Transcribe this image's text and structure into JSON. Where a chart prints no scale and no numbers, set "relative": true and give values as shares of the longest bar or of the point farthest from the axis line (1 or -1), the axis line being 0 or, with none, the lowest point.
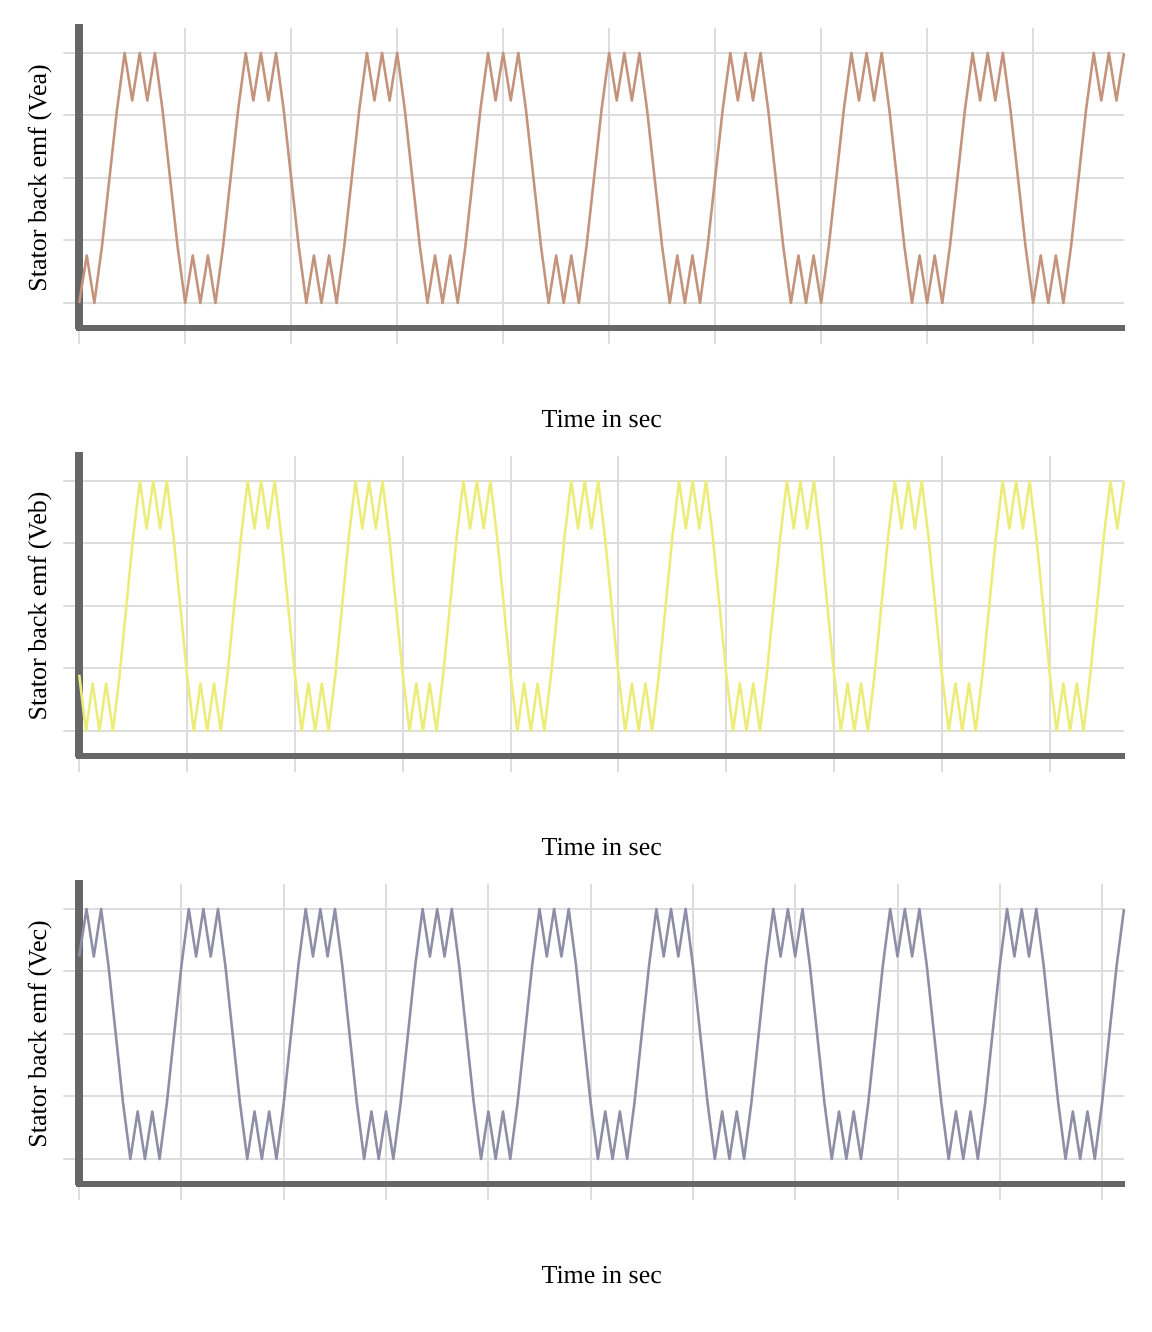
{
  "chart_data": [
    {
      "type": "line",
      "relative": true,
      "ylabel": "Stator back emf (Vea)",
      "xlabel": "Time in sec",
      "grid": true,
      "legend": false,
      "marker": "none",
      "line_style": "solid",
      "color": "#c4937c",
      "categories": [
        null,
        null,
        null,
        null,
        null,
        null,
        null,
        null,
        null,
        null,
        null,
        null,
        null,
        null,
        null,
        null,
        null,
        null,
        null,
        null,
        null,
        null,
        null,
        null,
        null,
        null,
        null,
        null,
        null,
        null,
        null,
        null,
        null,
        null,
        null,
        null,
        null,
        null,
        null,
        null,
        null,
        null,
        null,
        null,
        null,
        null,
        null,
        null,
        null,
        null,
        null,
        null,
        null,
        null,
        null,
        null,
        null,
        null,
        null,
        null,
        null,
        null,
        null,
        null,
        null,
        null,
        null,
        null,
        null,
        null,
        null,
        null,
        null,
        null,
        null,
        null,
        null,
        null,
        null,
        null,
        null,
        null,
        null,
        null,
        null,
        null,
        null,
        null,
        null,
        null,
        null,
        null,
        null,
        null,
        null,
        null,
        null,
        null,
        null,
        null,
        null,
        null,
        null,
        null,
        null,
        null,
        null,
        null,
        null,
        null,
        null,
        null,
        null,
        null,
        null,
        null,
        null,
        null,
        null,
        null,
        null,
        null,
        null,
        null,
        null,
        null,
        null,
        null,
        null,
        null,
        null,
        null,
        null,
        null,
        null,
        null,
        null,
        null,
        null
      ],
      "values": [
        -1,
        -0.62,
        -1,
        -0.55,
        0,
        0.55,
        1,
        0.62,
        1,
        0.62,
        1,
        0.55,
        0,
        -0.55,
        -1,
        -0.62,
        -1,
        -0.62,
        -1,
        -0.55,
        0,
        0.55,
        1,
        0.62,
        1,
        0.62,
        1,
        0.55,
        0,
        -0.55,
        -1,
        -0.62,
        -1,
        -0.62,
        -1,
        -0.55,
        0,
        0.55,
        1,
        0.62,
        1,
        0.62,
        1,
        0.55,
        0,
        -0.55,
        -1,
        -0.62,
        -1,
        -0.62,
        -1,
        -0.55,
        0,
        0.55,
        1,
        0.62,
        1,
        0.62,
        1,
        0.55,
        0,
        -0.55,
        -1,
        -0.62,
        -1,
        -0.62,
        -1,
        -0.55,
        0,
        0.55,
        1,
        0.62,
        1,
        0.62,
        1,
        0.55,
        0,
        -0.55,
        -1,
        -0.62,
        -1,
        -0.62,
        -1,
        -0.55,
        0,
        0.55,
        1,
        0.62,
        1,
        0.62,
        1,
        0.55,
        0,
        -0.55,
        -1,
        -0.62,
        -1,
        -0.62,
        -1,
        -0.55,
        0,
        0.55,
        1,
        0.62,
        1,
        0.62,
        1,
        0.55,
        0,
        -0.55,
        -1,
        -0.62,
        -1,
        -0.62,
        -1,
        -0.55,
        0,
        0.55,
        1,
        0.62,
        1,
        0.62,
        1,
        0.55,
        0,
        -0.55,
        -1,
        -0.62,
        -1,
        -0.62,
        -1,
        -0.55,
        0,
        0.55,
        1,
        0.62,
        1,
        0.62,
        1
      ]
    },
    {
      "type": "line",
      "relative": true,
      "ylabel": "Stator back emf (Veb)",
      "xlabel": "Time in sec",
      "grid": true,
      "legend": false,
      "marker": "none",
      "line_style": "solid",
      "color": "#ecec7a",
      "categories": [
        null,
        null,
        null,
        null,
        null,
        null,
        null,
        null,
        null,
        null,
        null,
        null,
        null,
        null,
        null,
        null,
        null,
        null,
        null,
        null,
        null,
        null,
        null,
        null,
        null,
        null,
        null,
        null,
        null,
        null,
        null,
        null,
        null,
        null,
        null,
        null,
        null,
        null,
        null,
        null,
        null,
        null,
        null,
        null,
        null,
        null,
        null,
        null,
        null,
        null,
        null,
        null,
        null,
        null,
        null,
        null,
        null,
        null,
        null,
        null,
        null,
        null,
        null,
        null,
        null,
        null,
        null,
        null,
        null,
        null,
        null,
        null,
        null,
        null,
        null,
        null,
        null,
        null,
        null,
        null,
        null,
        null,
        null,
        null,
        null,
        null,
        null,
        null,
        null,
        null,
        null,
        null,
        null,
        null,
        null,
        null,
        null,
        null,
        null,
        null,
        null,
        null,
        null,
        null,
        null,
        null,
        null,
        null,
        null,
        null,
        null,
        null,
        null,
        null,
        null,
        null,
        null,
        null,
        null,
        null,
        null,
        null,
        null,
        null,
        null,
        null,
        null,
        null,
        null,
        null,
        null,
        null,
        null,
        null,
        null,
        null,
        null,
        null,
        null,
        null,
        null,
        null,
        null,
        null,
        null,
        null,
        null,
        null,
        null,
        null,
        null,
        null,
        null,
        null,
        null,
        null
      ],
      "values": [
        -0.55,
        -1,
        -0.62,
        -1,
        -0.62,
        -1,
        -0.55,
        0,
        0.55,
        1,
        0.62,
        1,
        0.62,
        1,
        0.55,
        0,
        -0.55,
        -1,
        -0.62,
        -1,
        -0.62,
        -1,
        -0.55,
        0,
        0.55,
        1,
        0.62,
        1,
        0.62,
        1,
        0.55,
        0,
        -0.55,
        -1,
        -0.62,
        -1,
        -0.62,
        -1,
        -0.55,
        0,
        0.55,
        1,
        0.62,
        1,
        0.62,
        1,
        0.55,
        0,
        -0.55,
        -1,
        -0.62,
        -1,
        -0.62,
        -1,
        -0.55,
        0,
        0.55,
        1,
        0.62,
        1,
        0.62,
        1,
        0.55,
        0,
        -0.55,
        -1,
        -0.62,
        -1,
        -0.62,
        -1,
        -0.55,
        0,
        0.55,
        1,
        0.62,
        1,
        0.62,
        1,
        0.55,
        0,
        -0.55,
        -1,
        -0.62,
        -1,
        -0.62,
        -1,
        -0.55,
        0,
        0.55,
        1,
        0.62,
        1,
        0.62,
        1,
        0.55,
        0,
        -0.55,
        -1,
        -0.62,
        -1,
        -0.62,
        -1,
        -0.55,
        0,
        0.55,
        1,
        0.62,
        1,
        0.62,
        1,
        0.55,
        0,
        -0.55,
        -1,
        -0.62,
        -1,
        -0.62,
        -1,
        -0.55,
        0,
        0.55,
        1,
        0.62,
        1,
        0.62,
        1,
        0.55,
        0,
        -0.55,
        -1,
        -0.62,
        -1,
        -0.62,
        -1,
        -0.55,
        0,
        0.55,
        1,
        0.62,
        1,
        0.62,
        1,
        0.55,
        0,
        -0.55,
        -1,
        -0.62,
        -1,
        -0.62,
        -1,
        -0.55,
        0,
        0.55,
        1,
        0.62,
        1
      ]
    },
    {
      "type": "line",
      "relative": true,
      "ylabel": "Stator back emf (Vec)",
      "xlabel": "Time in sec",
      "grid": true,
      "legend": false,
      "marker": "none",
      "line_style": "solid",
      "color": "#8e8ea6",
      "categories": [
        null,
        null,
        null,
        null,
        null,
        null,
        null,
        null,
        null,
        null,
        null,
        null,
        null,
        null,
        null,
        null,
        null,
        null,
        null,
        null,
        null,
        null,
        null,
        null,
        null,
        null,
        null,
        null,
        null,
        null,
        null,
        null,
        null,
        null,
        null,
        null,
        null,
        null,
        null,
        null,
        null,
        null,
        null,
        null,
        null,
        null,
        null,
        null,
        null,
        null,
        null,
        null,
        null,
        null,
        null,
        null,
        null,
        null,
        null,
        null,
        null,
        null,
        null,
        null,
        null,
        null,
        null,
        null,
        null,
        null,
        null,
        null,
        null,
        null,
        null,
        null,
        null,
        null,
        null,
        null,
        null,
        null,
        null,
        null,
        null,
        null,
        null,
        null,
        null,
        null,
        null,
        null,
        null,
        null,
        null,
        null,
        null,
        null,
        null,
        null,
        null,
        null,
        null,
        null,
        null,
        null,
        null,
        null,
        null,
        null,
        null,
        null,
        null,
        null,
        null,
        null,
        null,
        null,
        null,
        null,
        null,
        null,
        null,
        null,
        null,
        null,
        null,
        null,
        null,
        null,
        null,
        null,
        null,
        null,
        null,
        null,
        null,
        null,
        null,
        null,
        null,
        null,
        null,
        null
      ],
      "values": [
        0.62,
        1,
        0.62,
        1,
        0.55,
        0,
        -0.55,
        -1,
        -0.62,
        -1,
        -0.62,
        -1,
        -0.55,
        0,
        0.55,
        1,
        0.62,
        1,
        0.62,
        1,
        0.55,
        0,
        -0.55,
        -1,
        -0.62,
        -1,
        -0.62,
        -1,
        -0.55,
        0,
        0.55,
        1,
        0.62,
        1,
        0.62,
        1,
        0.55,
        0,
        -0.55,
        -1,
        -0.62,
        -1,
        -0.62,
        -1,
        -0.55,
        0,
        0.55,
        1,
        0.62,
        1,
        0.62,
        1,
        0.55,
        0,
        -0.55,
        -1,
        -0.62,
        -1,
        -0.62,
        -1,
        -0.55,
        0,
        0.55,
        1,
        0.62,
        1,
        0.62,
        1,
        0.55,
        0,
        -0.55,
        -1,
        -0.62,
        -1,
        -0.62,
        -1,
        -0.55,
        0,
        0.55,
        1,
        0.62,
        1,
        0.62,
        1,
        0.55,
        0,
        -0.55,
        -1,
        -0.62,
        -1,
        -0.62,
        -1,
        -0.55,
        0,
        0.55,
        1,
        0.62,
        1,
        0.62,
        1,
        0.55,
        0,
        -0.55,
        -1,
        -0.62,
        -1,
        -0.62,
        -1,
        -0.55,
        0,
        0.55,
        1,
        0.62,
        1,
        0.62,
        1,
        0.55,
        0,
        -0.55,
        -1,
        -0.62,
        -1,
        -0.62,
        -1,
        -0.55,
        0,
        0.55,
        1,
        0.62,
        1,
        0.62,
        1,
        0.55,
        0,
        -0.55,
        -1,
        -0.62,
        -1,
        -0.62,
        -1,
        -0.55,
        0,
        0.55,
        1
      ]
    }
  ]
}
